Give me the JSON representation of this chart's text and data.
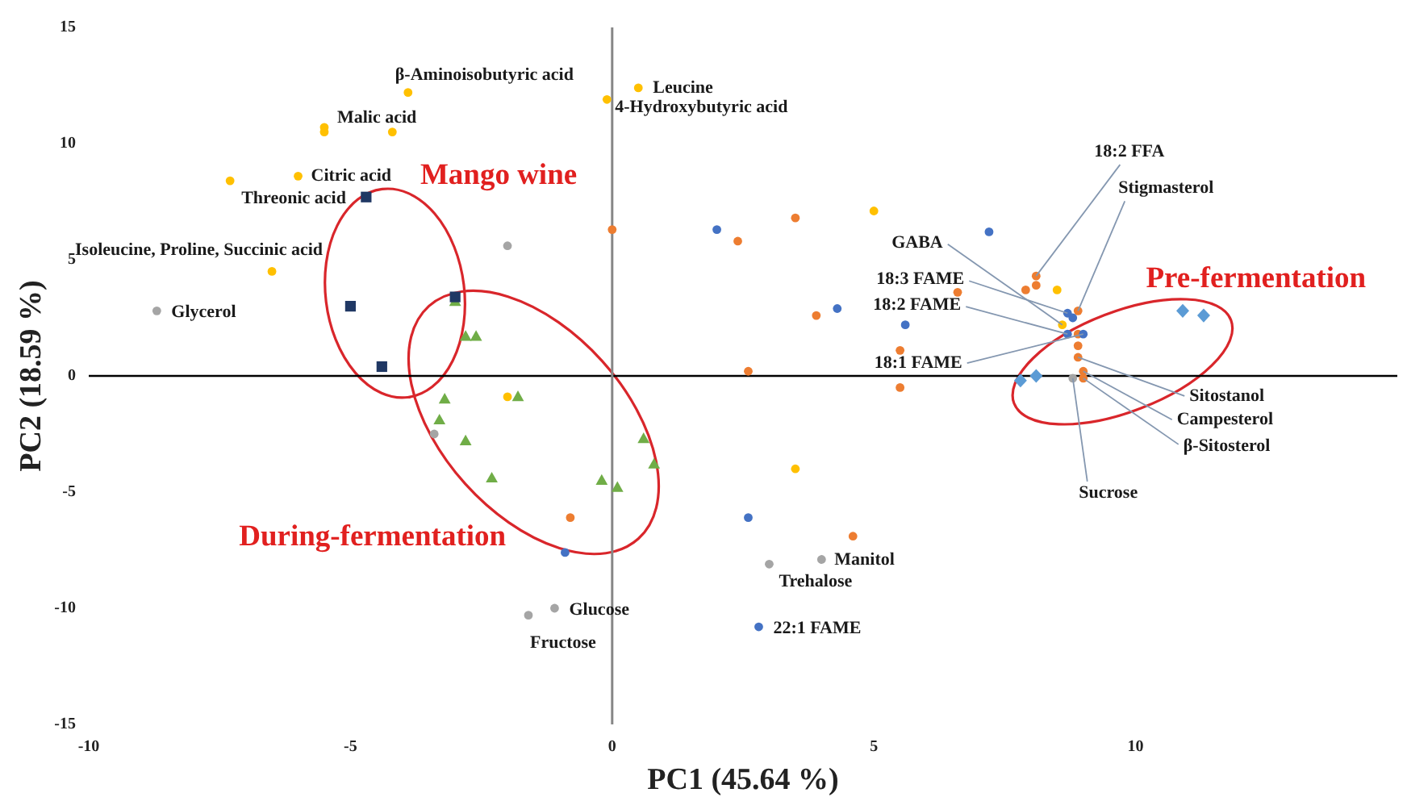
{
  "chart_data": {
    "type": "scatter",
    "xlabel": "PC1 (45.64 %)",
    "ylabel": "PC2 (18.59 %)",
    "xlim": [
      -10,
      15
    ],
    "ylim": [
      -15,
      15
    ],
    "xticks": [
      -10,
      -5,
      0,
      5,
      10
    ],
    "yticks": [
      -15,
      -10,
      -5,
      0,
      5,
      10,
      15
    ],
    "series": [
      {
        "color": "#ffc000",
        "marker": "circle",
        "x": [
          -3.9,
          -5.5,
          -5.5,
          -4.2,
          -6.0,
          -7.3,
          -6.5,
          0.5,
          -0.1,
          -2.0,
          5.0,
          8.5,
          8.6,
          3.5
        ],
        "values": [
          12.2,
          10.7,
          10.5,
          10.5,
          8.6,
          8.4,
          4.5,
          12.4,
          11.9,
          -0.9,
          7.1,
          3.7,
          2.2,
          -4.0
        ]
      },
      {
        "color": "#ed7d31",
        "marker": "circle",
        "x": [
          0.0,
          2.4,
          3.5,
          3.9,
          2.6,
          5.5,
          5.5,
          6.6,
          8.1,
          8.1,
          7.9,
          8.9,
          8.9,
          8.9,
          8.9,
          9.0,
          9.0,
          -0.8,
          4.6
        ],
        "values": [
          6.3,
          5.8,
          6.8,
          2.6,
          0.2,
          1.1,
          -0.5,
          3.6,
          4.3,
          3.9,
          3.7,
          2.8,
          1.8,
          1.3,
          0.8,
          0.2,
          -0.1,
          -6.1,
          -6.9
        ]
      },
      {
        "color": "#4472c4",
        "marker": "circle",
        "x": [
          2.0,
          4.3,
          5.6,
          7.2,
          8.7,
          8.8,
          8.7,
          9.0,
          -0.9,
          2.6,
          2.8
        ],
        "values": [
          6.3,
          2.9,
          2.2,
          6.2,
          2.7,
          2.5,
          1.8,
          1.8,
          -7.6,
          -6.1,
          -10.8
        ]
      },
      {
        "color": "#a5a5a5",
        "marker": "circle",
        "x": [
          -8.7,
          -2.0,
          -3.4,
          8.8,
          -1.1,
          -1.6,
          4.0,
          3.0
        ],
        "values": [
          2.8,
          5.6,
          -2.5,
          -0.1,
          -10.0,
          -10.3,
          -7.9,
          -8.1
        ]
      },
      {
        "color": "#70ad47",
        "marker": "triangle",
        "x": [
          -3.0,
          -2.8,
          -2.6,
          -3.2,
          -1.8,
          -3.3,
          -2.8,
          -2.3,
          -0.2,
          0.1,
          0.6,
          0.8
        ],
        "values": [
          3.2,
          1.7,
          1.7,
          -1.0,
          -0.9,
          -1.9,
          -2.8,
          -4.4,
          -4.5,
          -4.8,
          -2.7,
          -3.8
        ]
      },
      {
        "color": "#203864",
        "marker": "square",
        "x": [
          -4.7,
          -5.0,
          -4.4,
          -3.0
        ],
        "values": [
          7.7,
          3.0,
          0.4,
          3.4
        ]
      },
      {
        "color": "#5b9bd5",
        "marker": "diamond",
        "x": [
          7.8,
          8.1,
          10.9,
          11.3
        ],
        "values": [
          -0.2,
          0.0,
          2.8,
          2.6
        ]
      }
    ],
    "annotations": [
      {
        "text": "β-Aminoisobutyric acid",
        "x": -3.9,
        "y": 12.2
      },
      {
        "text": "Malic acid",
        "x": -5.5,
        "y": 10.7
      },
      {
        "text": "Citric acid",
        "x": -6.0,
        "y": 8.6
      },
      {
        "text": "Threonic acid",
        "x": -7.3,
        "y": 8.4
      },
      {
        "text": "Isoleucine, Proline, Succinic acid",
        "x": -6.5,
        "y": 4.5
      },
      {
        "text": "Glycerol",
        "x": -8.7,
        "y": 2.8
      },
      {
        "text": "Leucine",
        "x": 0.5,
        "y": 12.4
      },
      {
        "text": "4-Hydroxybutyric acid",
        "x": -0.1,
        "y": 11.9
      },
      {
        "text": "GABA",
        "x": 8.6,
        "y": 2.2
      },
      {
        "text": "18:3 FAME",
        "x": 8.7,
        "y": 2.7
      },
      {
        "text": "18:2 FAME",
        "x": 8.7,
        "y": 1.8
      },
      {
        "text": "18:1 FAME",
        "x": 9.0,
        "y": 1.8
      },
      {
        "text": "18:2 FFA",
        "x": 8.1,
        "y": 4.3
      },
      {
        "text": "Stigmasterol",
        "x": 8.9,
        "y": 2.8
      },
      {
        "text": "Sitostanol",
        "x": 8.9,
        "y": 0.8
      },
      {
        "text": "Campesterol",
        "x": 9.0,
        "y": 0.2
      },
      {
        "text": "β-Sitosterol",
        "x": 9.0,
        "y": -0.1
      },
      {
        "text": "Sucrose",
        "x": 8.8,
        "y": -0.1
      },
      {
        "text": "Glucose",
        "x": -1.1,
        "y": -10.0
      },
      {
        "text": "Fructose",
        "x": -1.6,
        "y": -10.3
      },
      {
        "text": "Manitol",
        "x": 4.0,
        "y": -7.9
      },
      {
        "text": "Trehalose",
        "x": 3.0,
        "y": -8.1
      },
      {
        "text": "22:1 FAME",
        "x": 2.8,
        "y": -10.8
      },
      "Mango wine",
      "During-fermentation",
      "Pre-fermentation"
    ]
  }
}
